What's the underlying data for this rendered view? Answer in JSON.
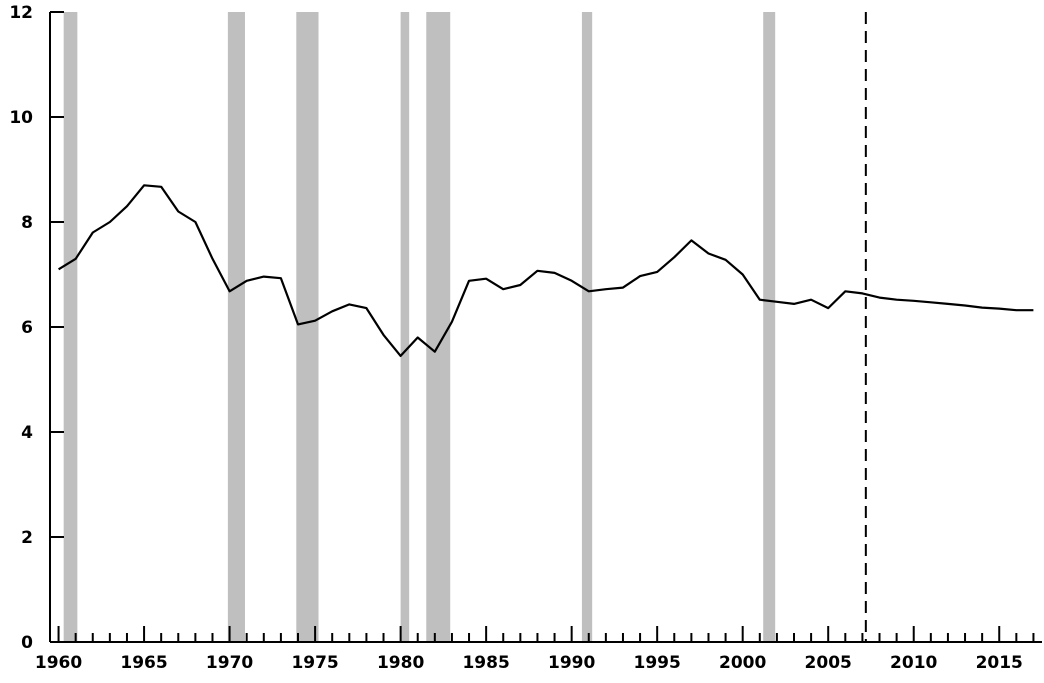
{
  "chart_data": {
    "type": "line",
    "title": "",
    "xlabel": "",
    "ylabel": "",
    "xlim": [
      1959.5,
      2017.5
    ],
    "ylim": [
      0,
      12
    ],
    "grid": false,
    "x_ticks": [
      1960,
      1965,
      1970,
      1975,
      1980,
      1985,
      1990,
      1995,
      2000,
      2005,
      2010,
      2015
    ],
    "y_ticks": [
      0,
      2,
      4,
      6,
      8,
      10,
      12
    ],
    "shaded_periods": [
      [
        1960.3,
        1961.1
      ],
      [
        1969.9,
        1970.9
      ],
      [
        1973.9,
        1975.2
      ],
      [
        1980.0,
        1980.5
      ],
      [
        1981.5,
        1982.9
      ],
      [
        1990.6,
        1991.2
      ],
      [
        2001.2,
        2001.9
      ]
    ],
    "forecast_start": 2007.2,
    "series": [
      {
        "x": [
          1960,
          1961,
          1962,
          1963,
          1964,
          1965,
          1966,
          1967,
          1968,
          1969,
          1970,
          1971,
          1972,
          1973,
          1974,
          1975,
          1976,
          1977,
          1978,
          1979,
          1980,
          1981,
          1982,
          1983,
          1984,
          1985,
          1986,
          1987,
          1988,
          1989,
          1990,
          1991,
          1992,
          1993,
          1994,
          1995,
          1996,
          1997,
          1998,
          1999,
          2000,
          2001,
          2002,
          2003,
          2004,
          2005,
          2006,
          2007,
          2008,
          2009,
          2010,
          2011,
          2012,
          2013,
          2014,
          2015,
          2016,
          2017
        ],
        "values": [
          7.1,
          7.3,
          7.8,
          8.0,
          8.3,
          8.7,
          8.67,
          8.2,
          8.0,
          7.3,
          6.68,
          6.88,
          6.96,
          6.93,
          6.05,
          6.12,
          6.3,
          6.43,
          6.36,
          5.85,
          5.45,
          5.8,
          5.53,
          6.1,
          6.88,
          6.92,
          6.72,
          6.8,
          7.07,
          7.03,
          6.88,
          6.68,
          6.72,
          6.75,
          6.97,
          7.05,
          7.33,
          7.65,
          7.4,
          7.28,
          7.0,
          6.52,
          6.48,
          6.44,
          6.52,
          6.36,
          6.68,
          6.64,
          6.56,
          6.52,
          6.5,
          6.47,
          6.44,
          6.41,
          6.37,
          6.35,
          6.32,
          6.32
        ]
      }
    ]
  }
}
